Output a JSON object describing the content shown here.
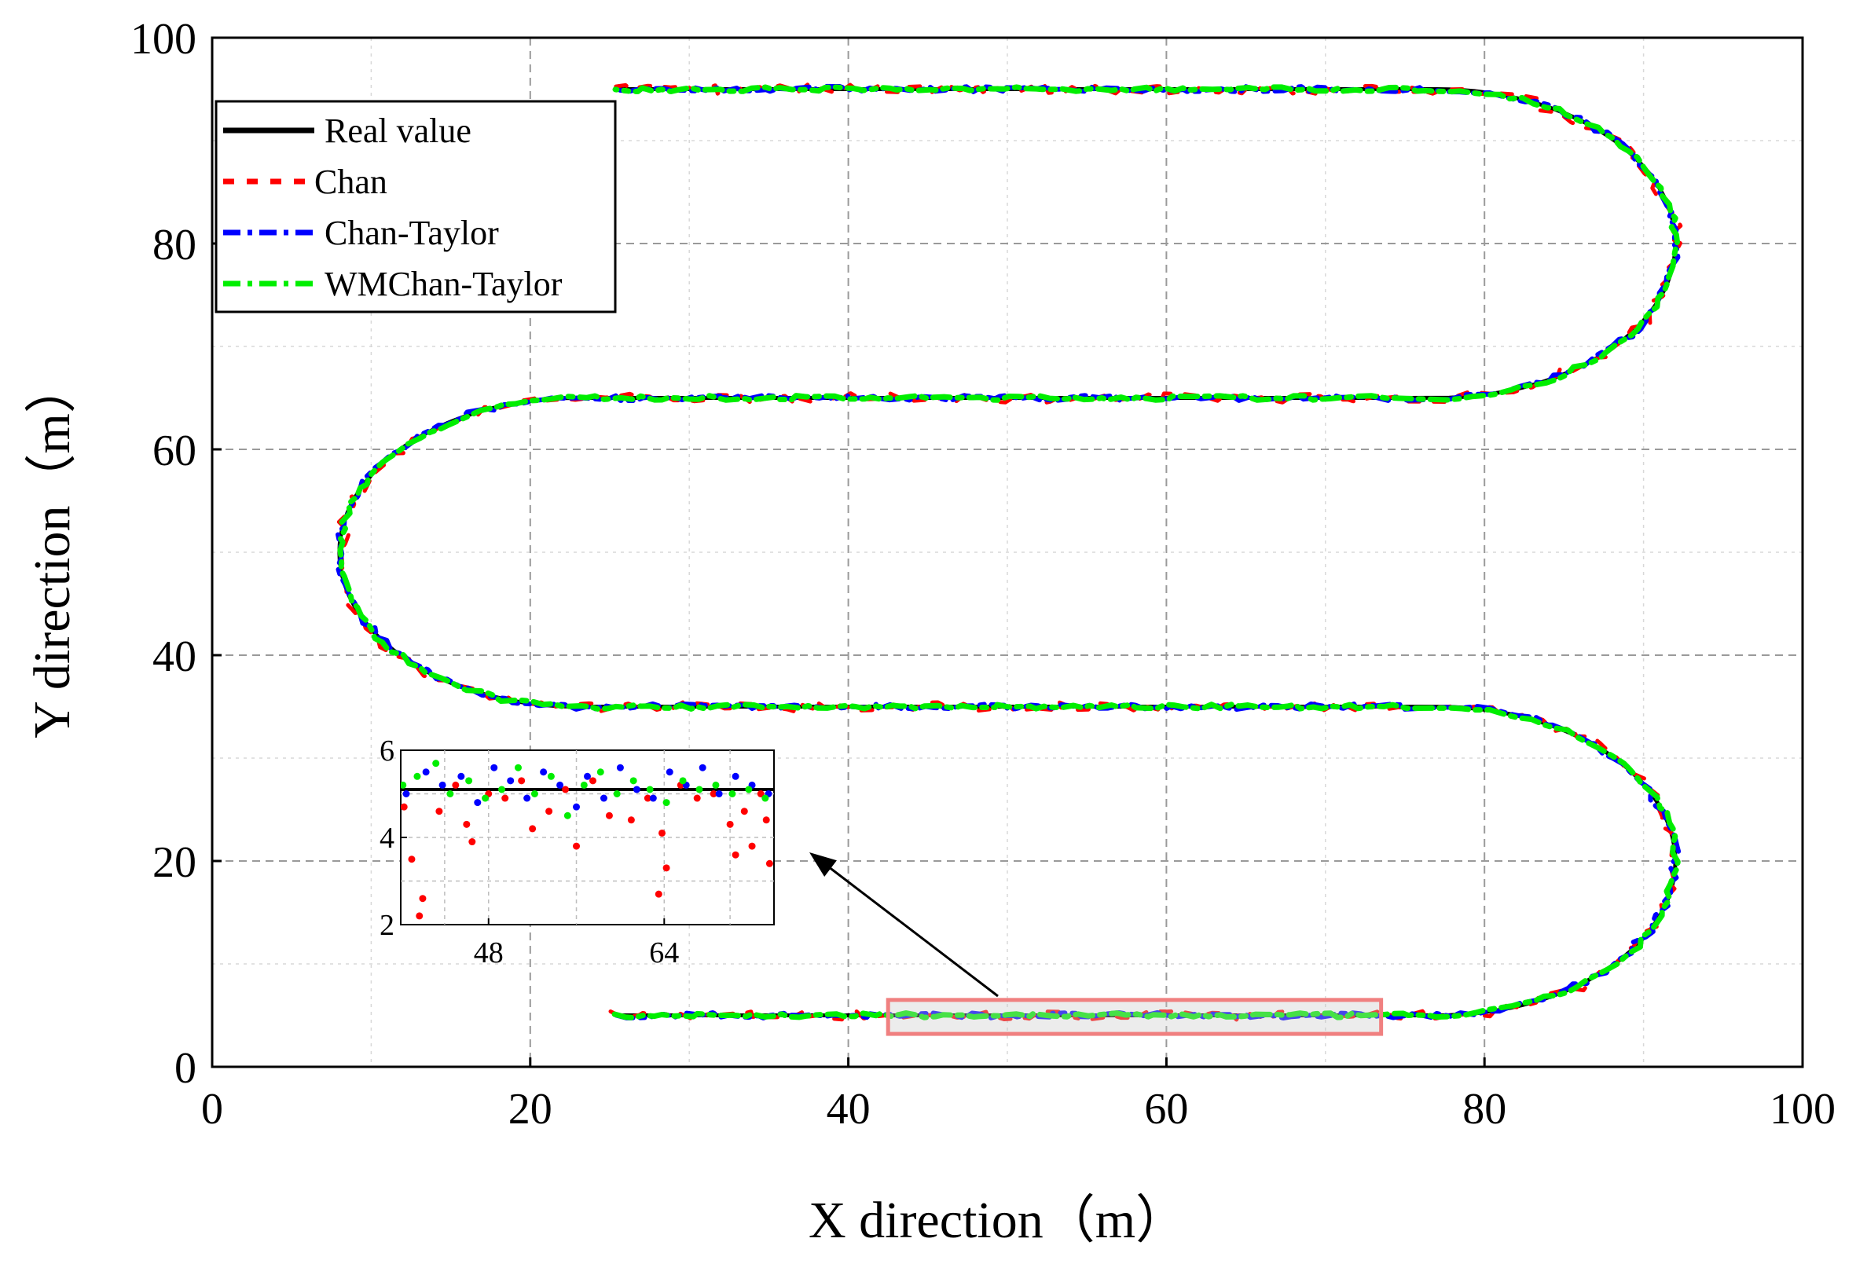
{
  "chart_data": {
    "type": "line",
    "title": "",
    "xlabel": "X direction（m）",
    "ylabel": "Y direction（m）",
    "xlim": [
      0,
      100
    ],
    "ylim": [
      0,
      100
    ],
    "x_ticks": [
      0,
      20,
      40,
      60,
      80,
      100
    ],
    "y_ticks": [
      0,
      20,
      40,
      60,
      80,
      100
    ],
    "x_tick_labels": [
      "0",
      "20",
      "40",
      "60",
      "80",
      "100"
    ],
    "y_tick_labels": [
      "0",
      "20",
      "40",
      "60",
      "80",
      "100"
    ],
    "grid": true,
    "legend_position": "top-left",
    "trajectory": {
      "description": "serpentine path of straight lanes joined by semicircular turns",
      "lanes": [
        {
          "y": 5,
          "x_start": 25.5,
          "x_end": 77
        },
        {
          "y": 35,
          "x_start": 23,
          "x_end": 75
        },
        {
          "y": 65,
          "x_start": 23,
          "x_end": 75
        },
        {
          "y": 95,
          "x_start": 25.5,
          "x_end": 77
        }
      ],
      "turns": [
        {
          "center": [
            77,
            20
          ],
          "radius": 15,
          "side": "right"
        },
        {
          "center": [
            23,
            50
          ],
          "radius": 15,
          "side": "left"
        },
        {
          "center": [
            77,
            80
          ],
          "radius": 15,
          "side": "right"
        }
      ]
    },
    "series": [
      {
        "name": "Real value",
        "color": "#000000",
        "style": "solid",
        "noise": 0
      },
      {
        "name": "Chan",
        "color": "#ff0000",
        "style": "dash",
        "noise": 0.45
      },
      {
        "name": "Chan-Taylor",
        "color": "#0000ff",
        "style": "dash-dot",
        "noise": 0.28
      },
      {
        "name": "WMChan-Taylor",
        "color": "#00ee00",
        "style": "dash-dot",
        "noise": 0.22
      }
    ],
    "highlight_box": {
      "x_range": [
        42.5,
        73.5
      ],
      "y_range": [
        3.2,
        6.5
      ],
      "color": "#f08080"
    },
    "inset": {
      "xlim": [
        40,
        74
      ],
      "ylim": [
        2,
        6
      ],
      "x_ticks": [
        48,
        64
      ],
      "x_tick_labels": [
        "48",
        "64"
      ],
      "y_ticks": [
        2,
        4,
        6
      ],
      "y_tick_labels": [
        "2",
        "4",
        "6"
      ],
      "real_value_y": 5.1,
      "points": {
        "Chan": [
          [
            40.3,
            4.7
          ],
          [
            41.0,
            3.5
          ],
          [
            41.7,
            2.2
          ],
          [
            42.0,
            2.6
          ],
          [
            43.5,
            4.6
          ],
          [
            45.0,
            5.2
          ],
          [
            46.0,
            4.3
          ],
          [
            46.5,
            3.9
          ],
          [
            48.0,
            5.0
          ],
          [
            49.5,
            4.9
          ],
          [
            51.0,
            5.3
          ],
          [
            52.0,
            4.2
          ],
          [
            53.5,
            4.6
          ],
          [
            55.0,
            5.1
          ],
          [
            56.0,
            3.8
          ],
          [
            57.5,
            5.3
          ],
          [
            59.0,
            4.5
          ],
          [
            61.0,
            4.4
          ],
          [
            62.5,
            4.9
          ],
          [
            63.5,
            2.7
          ],
          [
            63.8,
            4.1
          ],
          [
            64.2,
            3.3
          ],
          [
            65.5,
            5.2
          ],
          [
            67.0,
            4.9
          ],
          [
            68.5,
            5.0
          ],
          [
            70.0,
            4.3
          ],
          [
            70.5,
            3.6
          ],
          [
            71.3,
            4.6
          ],
          [
            72.0,
            3.8
          ],
          [
            72.8,
            5.0
          ],
          [
            73.3,
            4.4
          ],
          [
            73.6,
            3.4
          ]
        ],
        "Chan-Taylor": [
          [
            40.5,
            5.0
          ],
          [
            42.3,
            5.5
          ],
          [
            43.8,
            5.2
          ],
          [
            45.5,
            5.4
          ],
          [
            47.0,
            4.8
          ],
          [
            48.5,
            5.6
          ],
          [
            50.0,
            5.3
          ],
          [
            51.5,
            4.9
          ],
          [
            53.0,
            5.5
          ],
          [
            54.5,
            5.2
          ],
          [
            56.0,
            4.7
          ],
          [
            57.0,
            5.4
          ],
          [
            58.5,
            4.9
          ],
          [
            60.0,
            5.6
          ],
          [
            61.5,
            5.1
          ],
          [
            63.0,
            4.9
          ],
          [
            64.5,
            5.5
          ],
          [
            66.0,
            5.2
          ],
          [
            67.5,
            5.6
          ],
          [
            69.0,
            5.0
          ],
          [
            70.5,
            5.4
          ],
          [
            72.0,
            5.2
          ],
          [
            73.5,
            5.0
          ]
        ],
        "WMChan-Taylor": [
          [
            40.2,
            5.2
          ],
          [
            41.5,
            5.4
          ],
          [
            43.2,
            5.7
          ],
          [
            44.5,
            5.0
          ],
          [
            46.2,
            5.3
          ],
          [
            47.7,
            4.9
          ],
          [
            49.2,
            5.1
          ],
          [
            50.7,
            5.6
          ],
          [
            52.2,
            5.0
          ],
          [
            53.7,
            5.4
          ],
          [
            55.2,
            4.5
          ],
          [
            56.7,
            5.2
          ],
          [
            58.2,
            5.5
          ],
          [
            59.7,
            5.0
          ],
          [
            61.2,
            5.3
          ],
          [
            62.7,
            5.1
          ],
          [
            64.2,
            4.8
          ],
          [
            65.7,
            5.3
          ],
          [
            67.2,
            5.1
          ],
          [
            68.7,
            5.2
          ],
          [
            70.2,
            5.0
          ],
          [
            71.7,
            5.1
          ],
          [
            73.2,
            4.9
          ]
        ]
      }
    }
  }
}
